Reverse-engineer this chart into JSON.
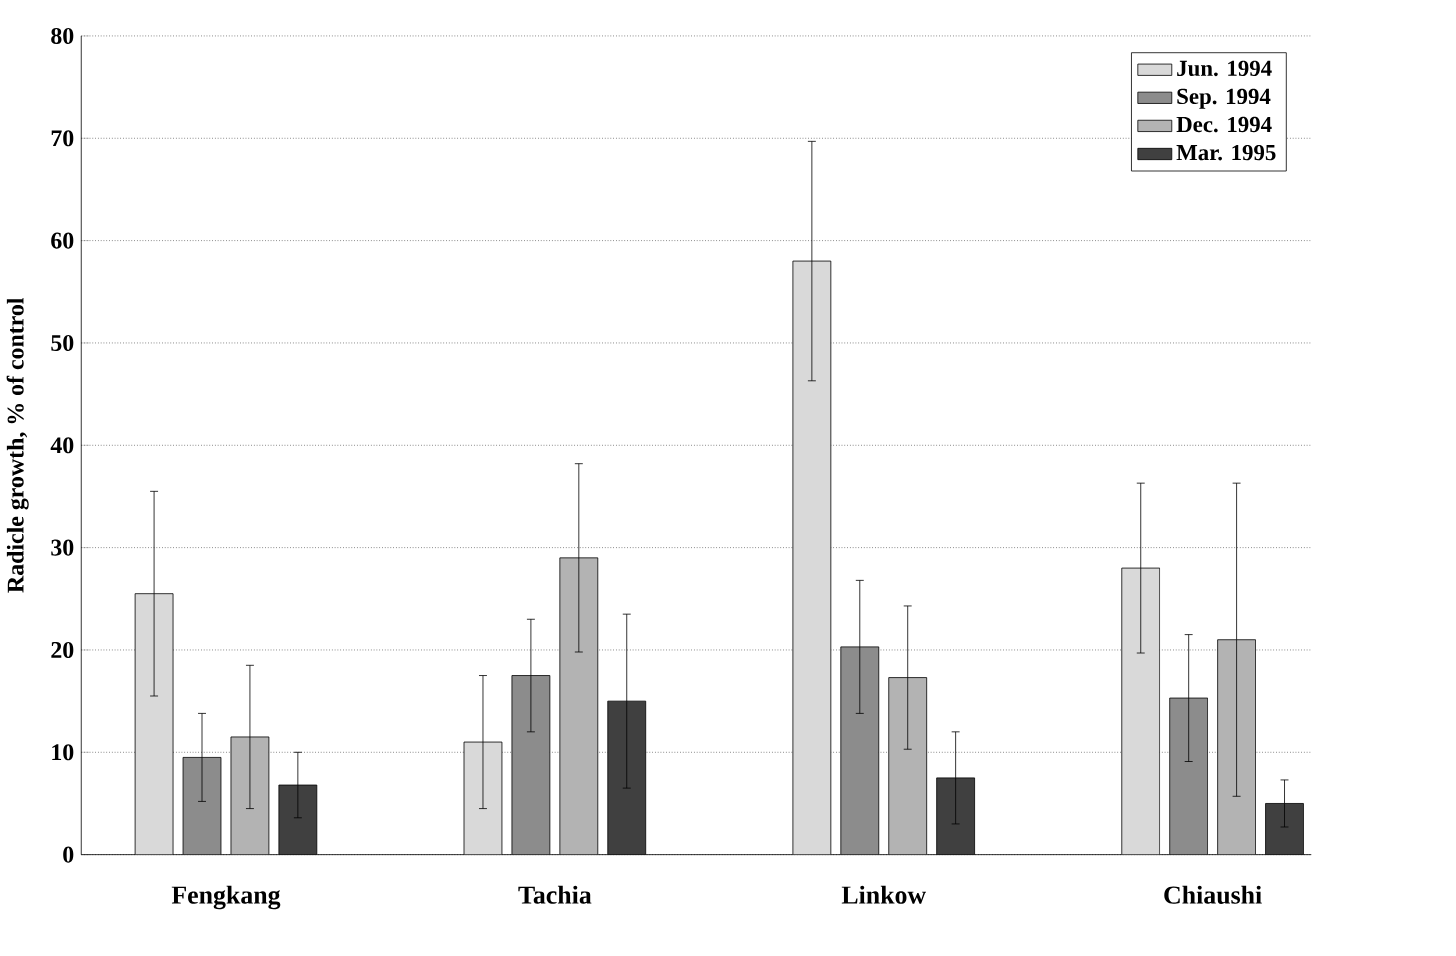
{
  "chart_data": {
    "type": "bar",
    "ylabel": "Radicle growth, % of control",
    "categories": [
      "Fengkang",
      "Tachia",
      "Linkow",
      "Chiaushi"
    ],
    "series": [
      {
        "name": "Jun. 1994",
        "color": "#d9d9d9",
        "values": [
          25.5,
          11,
          58,
          28
        ],
        "errors": [
          10,
          6.5,
          11.7,
          8.3
        ]
      },
      {
        "name": "Sep. 1994",
        "color": "#8c8c8c",
        "values": [
          9.5,
          17.5,
          20.3,
          15.3
        ],
        "errors": [
          4.3,
          5.5,
          6.5,
          6.2
        ]
      },
      {
        "name": "Dec. 1994",
        "color": "#b3b3b3",
        "values": [
          11.5,
          29,
          17.3,
          21
        ],
        "errors": [
          7,
          9.2,
          7,
          15.3
        ]
      },
      {
        "name": "Mar. 1995",
        "color": "#404040",
        "values": [
          6.8,
          15,
          7.5,
          5
        ],
        "errors": [
          3.2,
          8.5,
          4.5,
          2.3
        ]
      }
    ],
    "ylim": [
      0,
      80
    ],
    "yticks": [
      0,
      10,
      20,
      30,
      40,
      50,
      60,
      70,
      80
    ],
    "grid": "y",
    "legend": "top right"
  }
}
